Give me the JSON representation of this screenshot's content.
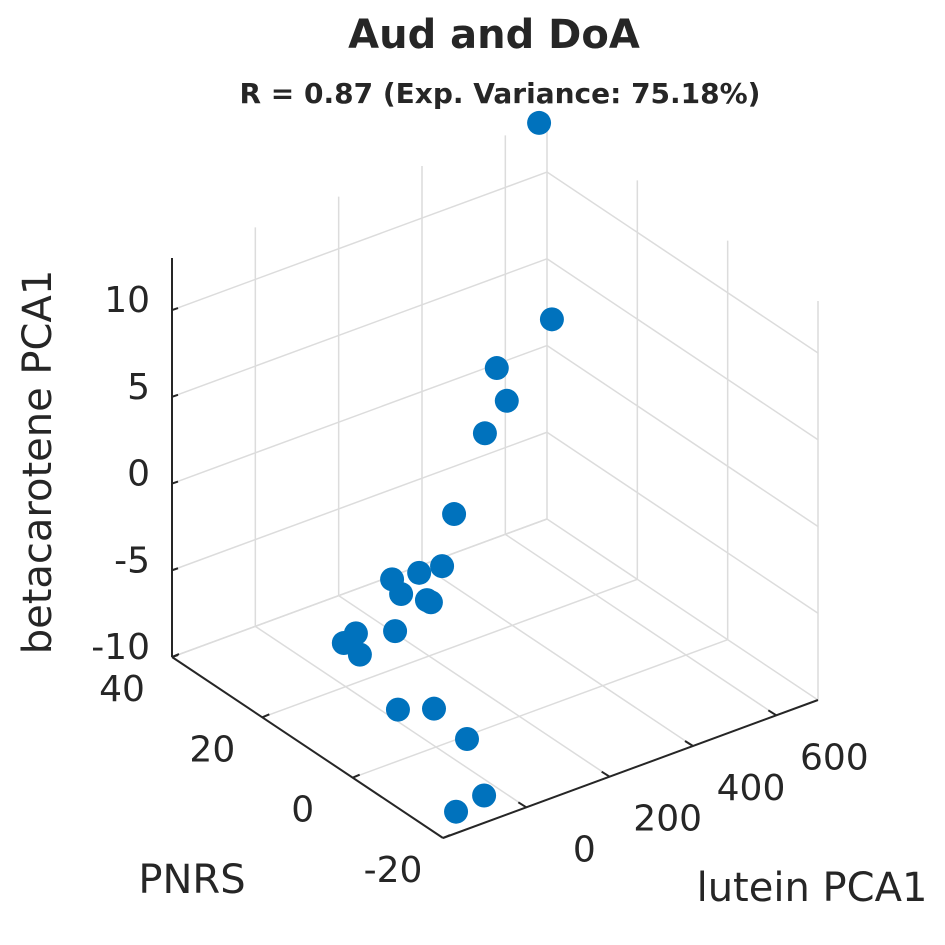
{
  "chart_data": {
    "type": "scatter3d",
    "title": "Aud and DoA",
    "subtitle": "R = 0.87 (Exp. Variance: 75.18%)",
    "x_label": "lutein PCA1",
    "y_label": "PNRS",
    "z_label": "betacarotene PCA1",
    "xlim": [
      -200,
      700
    ],
    "ylim": [
      -20,
      40
    ],
    "zlim": [
      -10,
      13
    ],
    "xticks": [
      0,
      200,
      400,
      600
    ],
    "yticks": [
      -20,
      0,
      20,
      40
    ],
    "zticks": [
      -10,
      -5,
      0,
      5,
      10
    ],
    "grid": true,
    "series": [
      {
        "color": "#0072bd",
        "x": [
          681,
          495,
          341,
          365,
          280,
          206,
          123,
          68,
          3,
          3,
          65,
          42,
          -44,
          -138,
          -167,
          -161,
          -113,
          -59,
          -34,
          -58,
          -147
        ],
        "y": [
          40,
          20,
          18,
          18,
          15,
          15,
          10,
          10,
          10,
          8,
          8,
          5,
          5,
          5,
          5,
          2,
          -2,
          -5,
          -10,
          -16,
          -18
        ],
        "z": [
          13,
          6.8,
          5.7,
          3.6,
          3.0,
          -1.0,
          -2.4,
          -2.3,
          -2.1,
          -2.6,
          -3.5,
          -2.9,
          -3.8,
          -3.1,
          -3.4,
          -3.6,
          -6.5,
          -6.4,
          -7.5,
          -9.5,
          -9.3
        ]
      }
    ]
  }
}
